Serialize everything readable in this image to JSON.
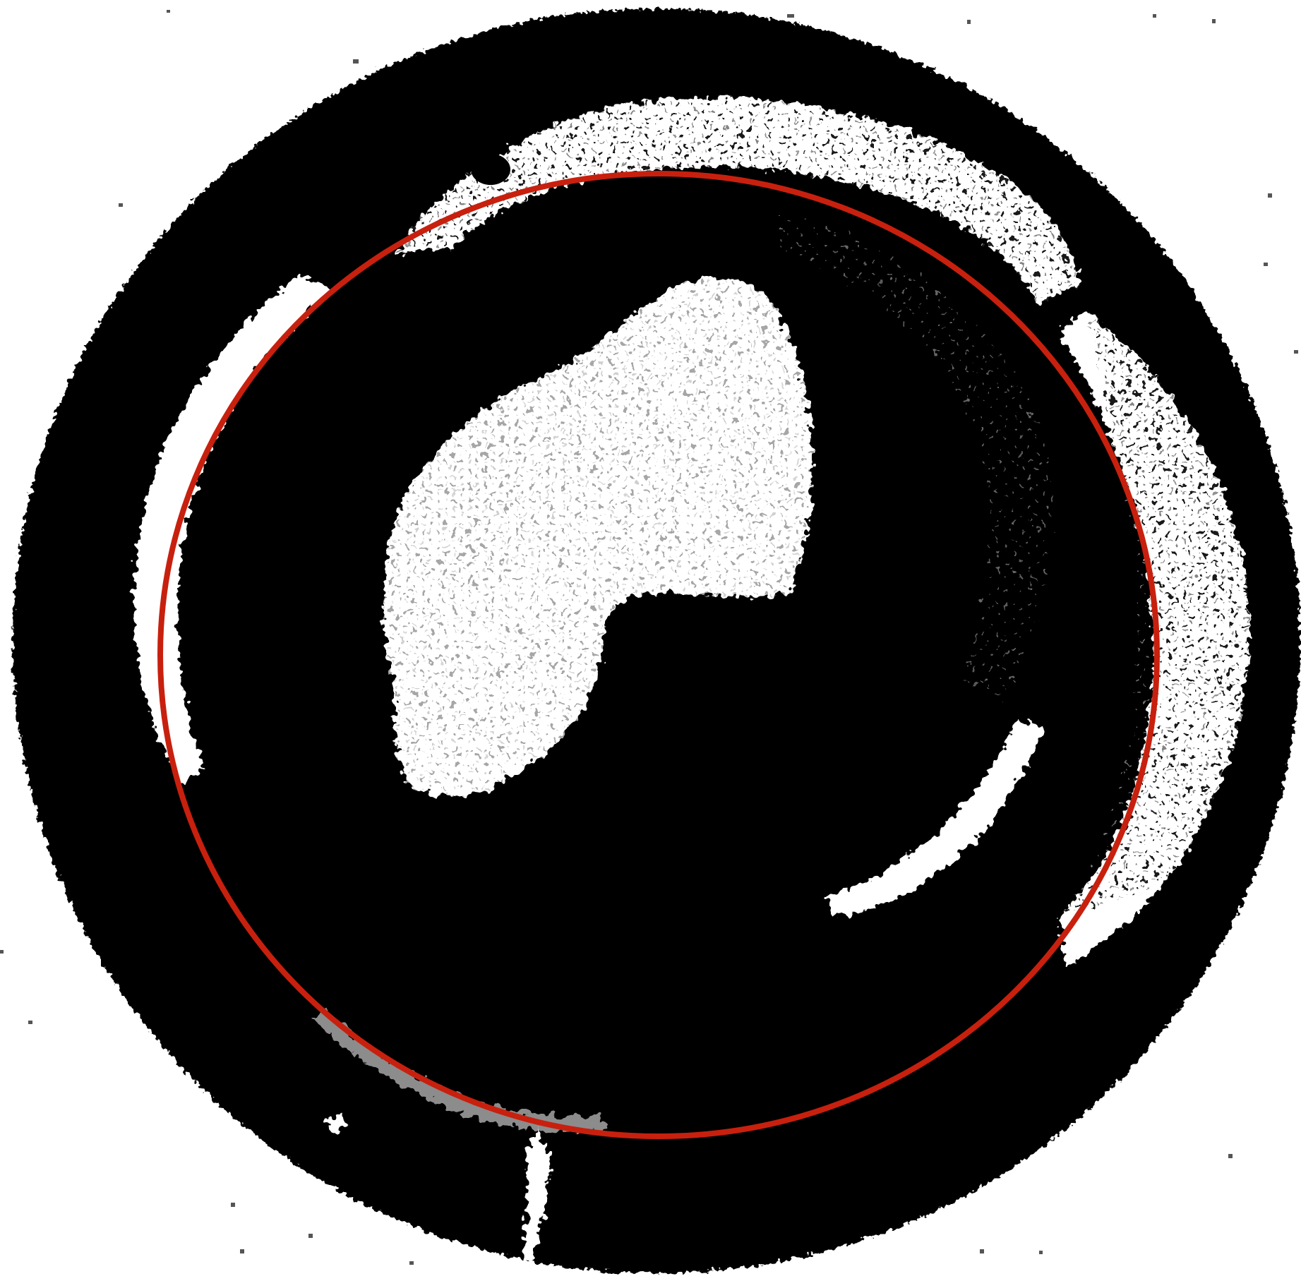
{
  "image": {
    "subject": "binarized-circular-scan",
    "background_color": "#ffffff",
    "disc_color": "#000000",
    "highlight_color": "#ffffff",
    "overlay_circle_color": "#c8200e"
  }
}
